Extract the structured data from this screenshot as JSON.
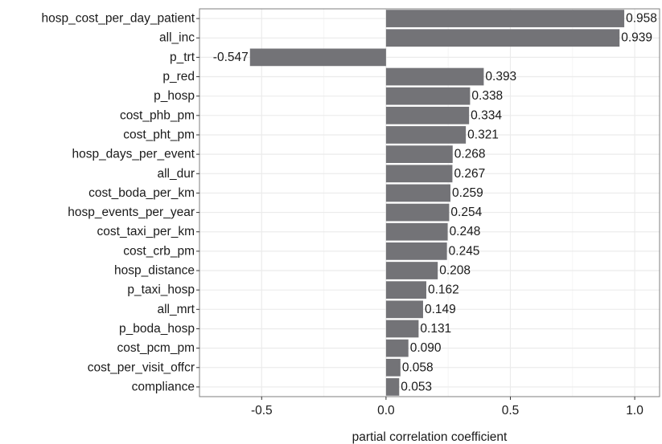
{
  "chart_data": {
    "type": "bar",
    "orientation": "horizontal",
    "title": "",
    "xlabel": "partial correlation coefficient",
    "ylabel": "",
    "xlim": [
      -0.75,
      1.1
    ],
    "xticks": [
      -0.5,
      0.0,
      0.5,
      1.0
    ],
    "xtick_labels": [
      "-0.5",
      "0.0",
      "0.5",
      "1.0"
    ],
    "grid": true,
    "legend": "none",
    "categories": [
      "hosp_cost_per_day_patient",
      "all_inc",
      "p_trt",
      "p_red",
      "p_hosp",
      "cost_phb_pm",
      "cost_pht_pm",
      "hosp_days_per_event",
      "all_dur",
      "cost_boda_per_km",
      "hosp_events_per_year",
      "cost_taxi_per_km",
      "cost_crb_pm",
      "hosp_distance",
      "p_taxi_hosp",
      "all_mrt",
      "p_boda_hosp",
      "cost_pcm_pm",
      "cost_per_visit_offcr",
      "compliance"
    ],
    "values": [
      0.958,
      0.939,
      -0.547,
      0.393,
      0.338,
      0.334,
      0.321,
      0.268,
      0.267,
      0.259,
      0.254,
      0.248,
      0.245,
      0.208,
      0.162,
      0.149,
      0.131,
      0.09,
      0.058,
      0.053
    ],
    "value_labels": [
      "0.958",
      "0.939",
      "-0.547",
      "0.393",
      "0.338",
      "0.334",
      "0.321",
      "0.268",
      "0.267",
      "0.259",
      "0.254",
      "0.248",
      "0.245",
      "0.208",
      "0.162",
      "0.149",
      "0.131",
      "0.090",
      "0.058",
      "0.053"
    ],
    "colors": {
      "bar": "#737377",
      "grid_major": "#ebebeb",
      "grid_minor": "#f5f5f5",
      "panel_border": "#7f7f7f",
      "text": "#1a1a1a"
    }
  }
}
